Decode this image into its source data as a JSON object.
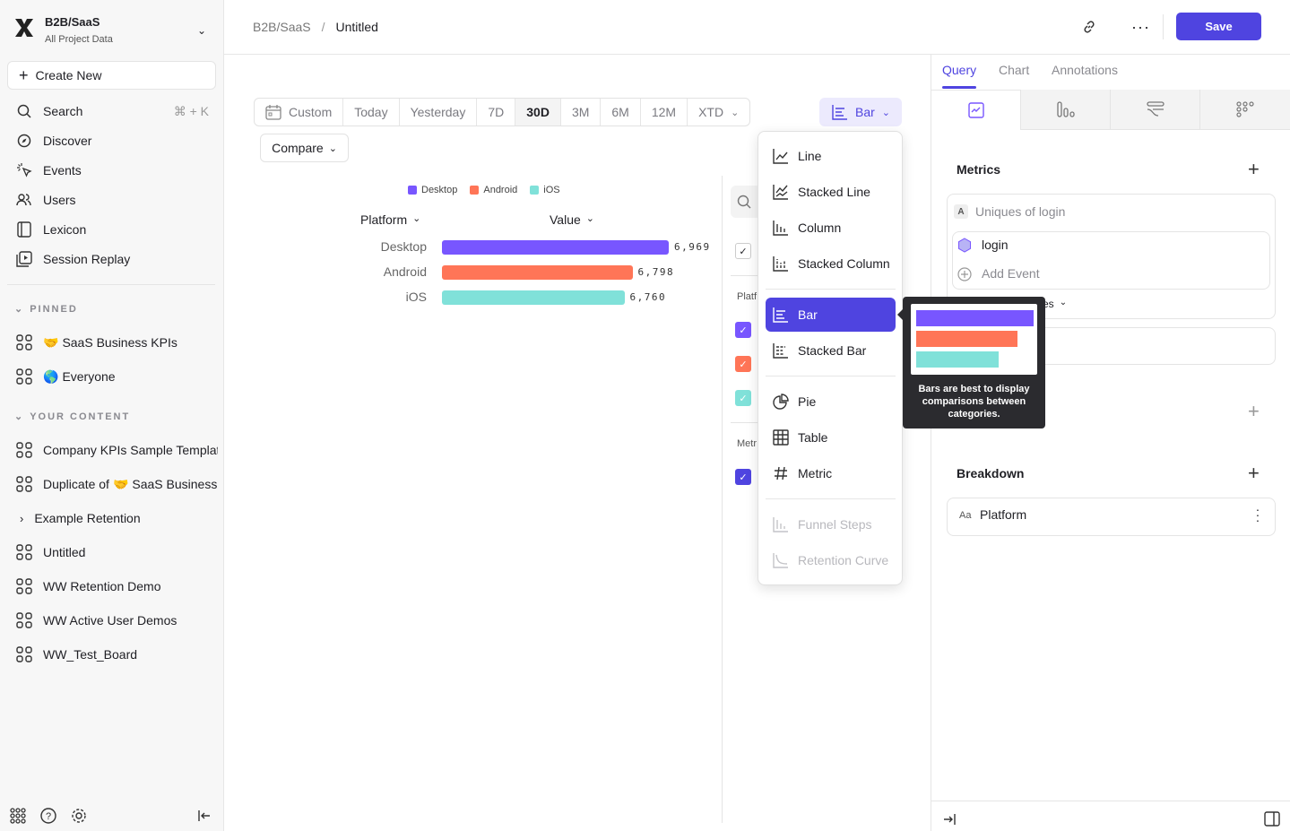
{
  "project": {
    "name": "B2B/SaaS",
    "subtitle": "All Project Data"
  },
  "sidebar": {
    "create_new": "Create New",
    "nav": [
      {
        "label": "Search",
        "icon": "search-icon",
        "shortcut": "⌘ + K"
      },
      {
        "label": "Discover",
        "icon": "compass-icon"
      },
      {
        "label": "Events",
        "icon": "cursor-click-icon"
      },
      {
        "label": "Users",
        "icon": "users-icon"
      },
      {
        "label": "Lexicon",
        "icon": "book-icon"
      },
      {
        "label": "Session Replay",
        "icon": "play-icon"
      }
    ],
    "pinned_label": "PINNED",
    "pinned": [
      {
        "label": "SaaS Business KPIs",
        "emoji": "🤝"
      },
      {
        "label": "Everyone",
        "emoji": "🌎"
      }
    ],
    "content_label": "YOUR CONTENT",
    "content": [
      {
        "label": "Company KPIs Sample Templat"
      },
      {
        "label": "Duplicate of",
        "emoji": "🤝",
        "suffix": "SaaS Business"
      },
      {
        "label": "Example Retention",
        "folder": true
      },
      {
        "label": "Untitled"
      },
      {
        "label": "WW Retention Demo"
      },
      {
        "label": "WW Active User Demos"
      },
      {
        "label": "WW_Test_Board"
      }
    ]
  },
  "header": {
    "breadcrumb": [
      "B2B/SaaS",
      "Untitled"
    ],
    "separator": "/",
    "save": "Save"
  },
  "date_range": {
    "options": [
      "Custom",
      "Today",
      "Yesterday",
      "7D",
      "30D",
      "3M",
      "6M",
      "12M",
      "XTD"
    ],
    "selected": "30D"
  },
  "compare": "Compare",
  "chart_type_button": "Bar",
  "chart": {
    "type": "bar",
    "legend": [
      "Desktop",
      "Android",
      "iOS"
    ],
    "col_platform": "Platform",
    "col_value": "Value",
    "categories": [
      "Desktop",
      "Android",
      "iOS"
    ],
    "values": [
      6969,
      6798,
      6760
    ],
    "value_labels": [
      "6,969",
      "6,798",
      "6,760"
    ],
    "colors": [
      "#7856ff",
      "#ff7557",
      "#80e1d9"
    ]
  },
  "side_filter": {
    "platform_label": "Platf",
    "metric_label": "Metr"
  },
  "chart_menu": {
    "items": [
      {
        "label": "Line",
        "icon": "line-chart-icon"
      },
      {
        "label": "Stacked Line",
        "icon": "stacked-line-icon"
      },
      {
        "label": "Column",
        "icon": "column-chart-icon"
      },
      {
        "label": "Stacked Column",
        "icon": "stacked-column-icon"
      },
      {
        "label": "Bar",
        "icon": "bar-chart-icon",
        "selected": true
      },
      {
        "label": "Stacked Bar",
        "icon": "stacked-bar-icon"
      },
      {
        "label": "Pie",
        "icon": "pie-chart-icon"
      },
      {
        "label": "Table",
        "icon": "table-icon"
      },
      {
        "label": "Metric",
        "icon": "hash-icon"
      },
      {
        "label": "Funnel Steps",
        "icon": "funnel-icon",
        "disabled": true
      },
      {
        "label": "Retention Curve",
        "icon": "retention-icon",
        "disabled": true
      }
    ],
    "tooltip": "Bars are best to display comparisons between categories."
  },
  "right_panel": {
    "tabs": [
      "Query",
      "Chart",
      "Annotations"
    ],
    "active_tab": "Query",
    "metrics_title": "Metrics",
    "metric": {
      "badge": "A",
      "name": "Uniques of login",
      "event": "login",
      "add_event": "Add Event",
      "measure_tail": "es"
    },
    "breakdown_title": "Breakdown",
    "breakdown": {
      "type_badge": "Aa",
      "name": "Platform"
    }
  },
  "colors": {
    "accent": "#4f44e0"
  }
}
